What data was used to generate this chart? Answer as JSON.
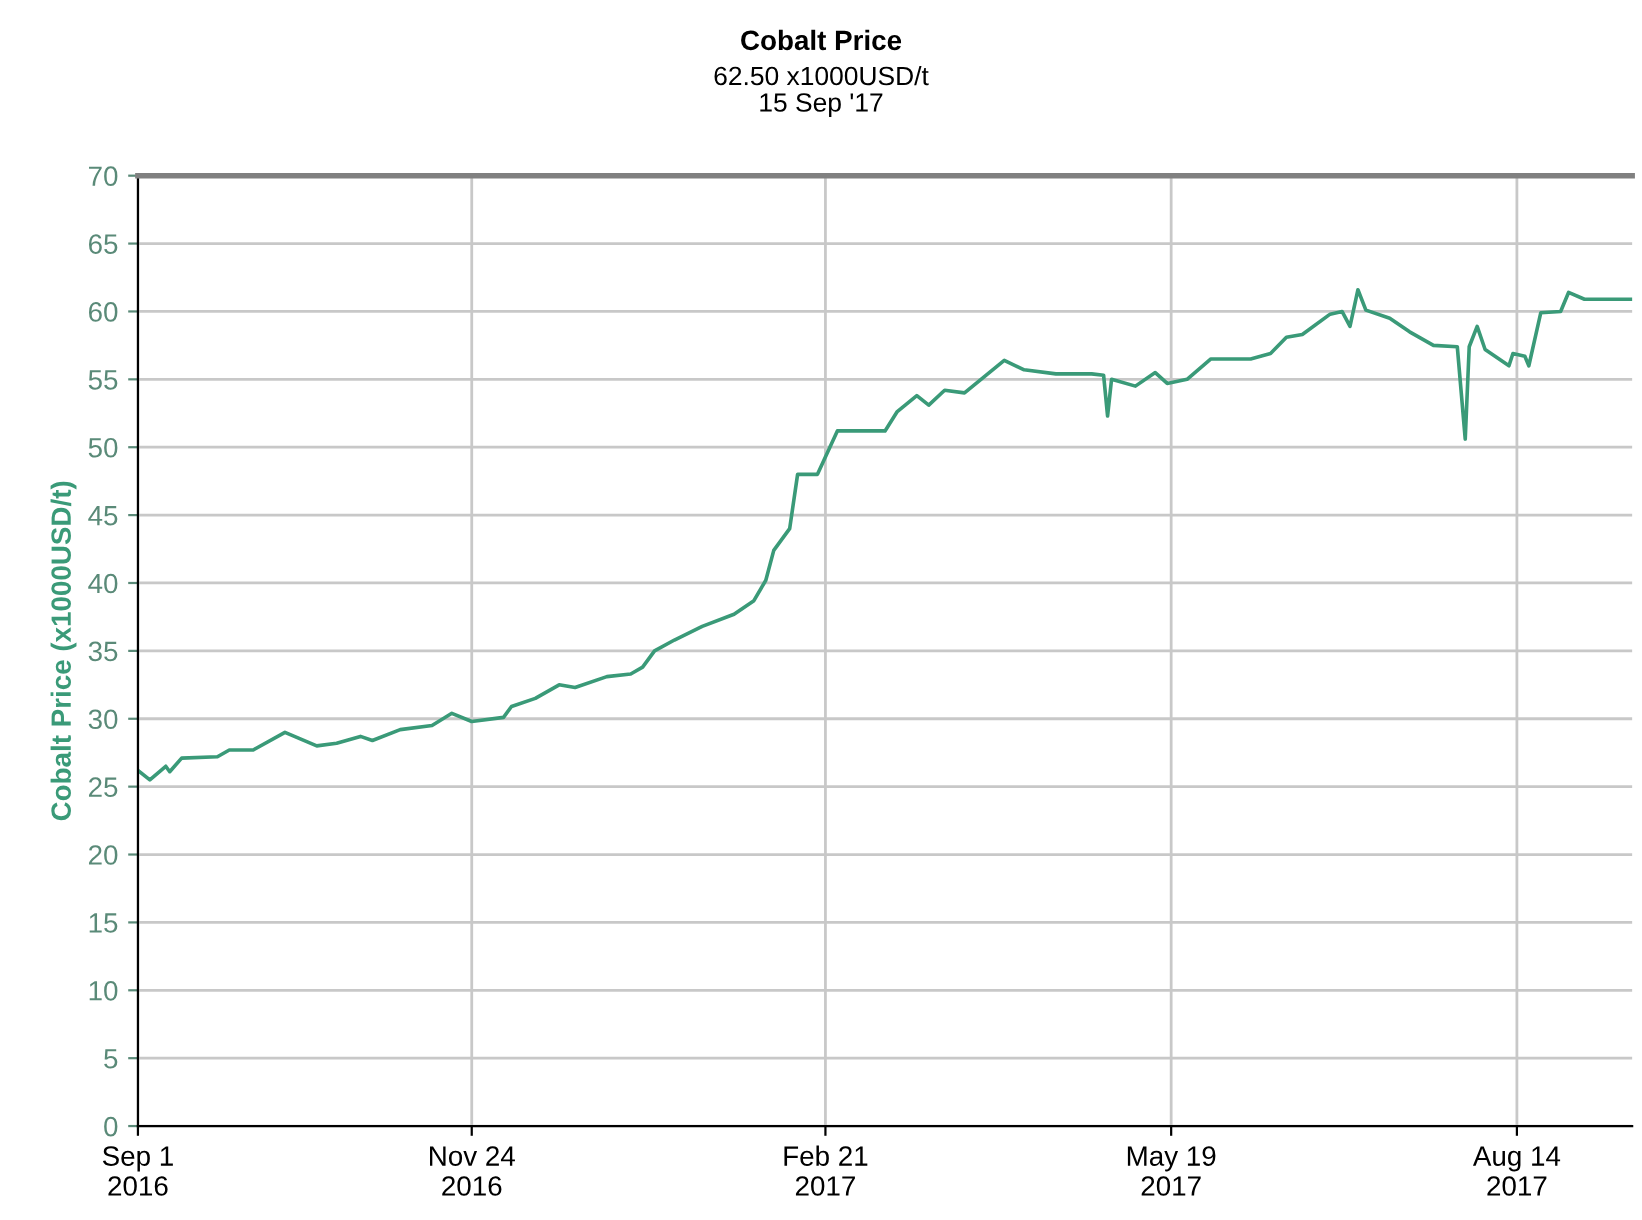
{
  "chart_data": {
    "type": "line",
    "title": "Cobalt Price",
    "subtitle": "62.50 x1000USD/t\n15 Sep '17",
    "ylabel": "Cobalt Price (x1000USD/t)",
    "x": [
      "2016-09-01",
      "2016-09-04",
      "2016-09-08",
      "2016-09-09",
      "2016-09-12",
      "2016-09-21",
      "2016-09-24",
      "2016-09-30",
      "2016-10-08",
      "2016-10-16",
      "2016-10-21",
      "2016-10-27",
      "2016-10-30",
      "2016-11-06",
      "2016-11-14",
      "2016-11-19",
      "2016-11-24",
      "2016-12-02",
      "2016-12-04",
      "2016-12-10",
      "2016-12-16",
      "2016-12-20",
      "2016-12-28",
      "2017-01-03",
      "2017-01-06",
      "2017-01-09",
      "2017-01-14",
      "2017-01-21",
      "2017-01-29",
      "2017-02-03",
      "2017-02-06",
      "2017-02-08",
      "2017-02-12",
      "2017-02-14",
      "2017-02-19",
      "2017-02-24",
      "2017-03-08",
      "2017-03-11",
      "2017-03-16",
      "2017-03-19",
      "2017-03-23",
      "2017-03-28",
      "2017-04-02",
      "2017-04-07",
      "2017-04-12",
      "2017-04-20",
      "2017-04-29",
      "2017-05-02",
      "2017-05-03",
      "2017-05-04",
      "2017-05-10",
      "2017-05-15",
      "2017-05-18",
      "2017-05-23",
      "2017-05-29",
      "2017-06-08",
      "2017-06-13",
      "2017-06-17",
      "2017-06-21",
      "2017-06-28",
      "2017-07-01",
      "2017-07-03",
      "2017-07-05",
      "2017-07-07",
      "2017-07-13",
      "2017-07-18",
      "2017-07-24",
      "2017-07-30",
      "2017-08-01",
      "2017-08-02",
      "2017-08-04",
      "2017-08-06",
      "2017-08-12",
      "2017-08-13",
      "2017-08-16",
      "2017-08-17",
      "2017-08-20",
      "2017-08-25",
      "2017-08-27",
      "2017-08-31",
      "2017-09-12"
    ],
    "series": [
      {
        "color": "#3a9a78",
        "values": [
          26.2,
          25.5,
          26.5,
          26.1,
          27.1,
          27.2,
          27.7,
          27.7,
          29.0,
          28.0,
          28.2,
          28.7,
          28.4,
          29.2,
          29.5,
          30.4,
          29.8,
          30.1,
          30.9,
          31.5,
          32.5,
          32.3,
          33.1,
          33.3,
          33.8,
          35.0,
          35.8,
          36.8,
          37.7,
          38.7,
          40.2,
          42.4,
          44.0,
          48.0,
          48.0,
          51.2,
          51.2,
          52.6,
          53.8,
          53.1,
          54.2,
          54.0,
          55.2,
          56.4,
          55.7,
          55.4,
          55.4,
          55.3,
          52.3,
          55.0,
          54.5,
          55.5,
          54.7,
          55.0,
          56.5,
          56.5,
          56.9,
          58.1,
          58.3,
          59.8,
          60.0,
          58.9,
          61.6,
          60.1,
          59.5,
          58.5,
          57.5,
          57.4,
          50.6,
          57.4,
          58.9,
          57.2,
          56.0,
          56.9,
          56.7,
          56.0,
          59.9,
          60.0,
          61.4,
          60.9,
          60.9
        ]
      }
    ],
    "xlim": [
      "2016-09-01",
      "2017-09-12"
    ],
    "xticks": [
      {
        "value": "2016-09-01",
        "label": "Sep 1\n2016"
      },
      {
        "value": "2016-11-24",
        "label": "Nov 24\n2016"
      },
      {
        "value": "2017-02-21",
        "label": "Feb 21\n2017"
      },
      {
        "value": "2017-05-19",
        "label": "May 19\n2017"
      },
      {
        "value": "2017-08-14",
        "label": "Aug 14\n2017"
      }
    ],
    "ylim": [
      0,
      70
    ],
    "yticks": [
      0,
      5,
      10,
      15,
      20,
      25,
      30,
      35,
      40,
      45,
      50,
      55,
      60,
      65,
      70
    ],
    "grid": true
  }
}
